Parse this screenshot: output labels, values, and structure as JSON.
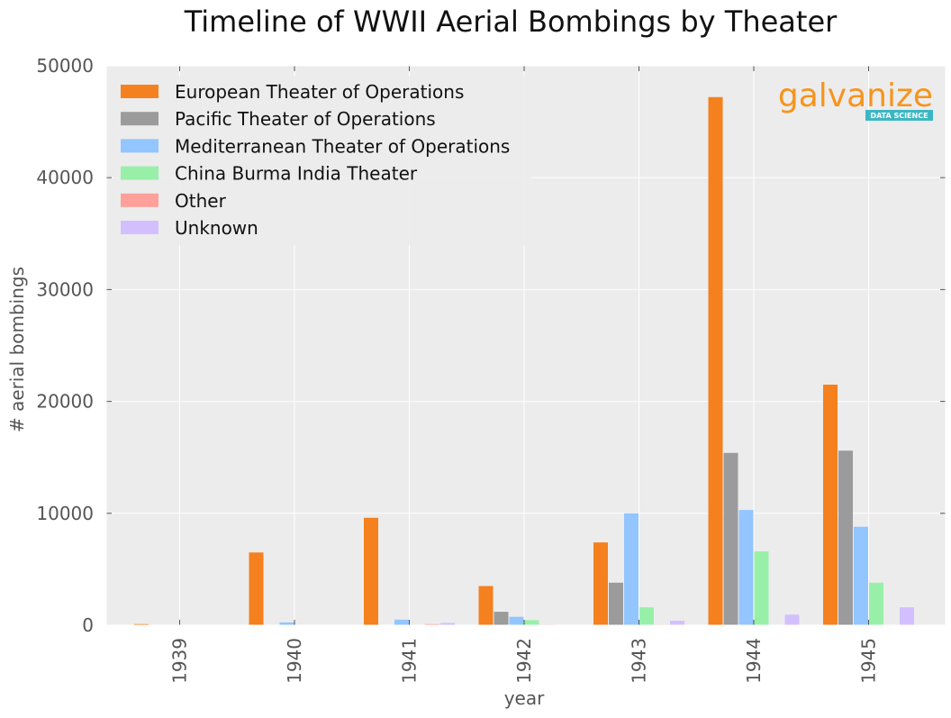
{
  "chart_data": {
    "type": "bar",
    "title": "Timeline of WWII Aerial Bombings by Theater",
    "xlabel": "year",
    "ylabel": "# aerial bombings",
    "categories": [
      "1939",
      "1940",
      "1941",
      "1942",
      "1943",
      "1944",
      "1945"
    ],
    "ylim": [
      0,
      50000
    ],
    "yticks": [
      "0",
      "10000",
      "20000",
      "30000",
      "40000",
      "50000"
    ],
    "grid": true,
    "legend_position": "top-left",
    "series": [
      {
        "name": "European Theater of Operations",
        "color": "#f5801e",
        "values": [
          100,
          6500,
          9600,
          3500,
          7400,
          47200,
          21500
        ]
      },
      {
        "name": "Pacific Theater of Operations",
        "color": "#9b9b9b",
        "values": [
          0,
          0,
          0,
          1200,
          3800,
          15400,
          15600
        ]
      },
      {
        "name": "Mediterranean Theater of Operations",
        "color": "#93c5ff",
        "values": [
          0,
          250,
          500,
          750,
          10000,
          10300,
          8800
        ]
      },
      {
        "name": "China Burma India Theater",
        "color": "#98f0a8",
        "values": [
          0,
          0,
          0,
          450,
          1600,
          6600,
          3800
        ]
      },
      {
        "name": "Other",
        "color": "#ffa09a",
        "values": [
          0,
          0,
          100,
          50,
          50,
          0,
          0
        ]
      },
      {
        "name": "Unknown",
        "color": "#d3bfff",
        "values": [
          0,
          0,
          200,
          0,
          400,
          950,
          1600
        ]
      }
    ]
  },
  "logo": {
    "text": "galvanize",
    "badge": "DATA SCIENCE",
    "color": "#f7941d",
    "badge_color": "#3bb7c4"
  }
}
